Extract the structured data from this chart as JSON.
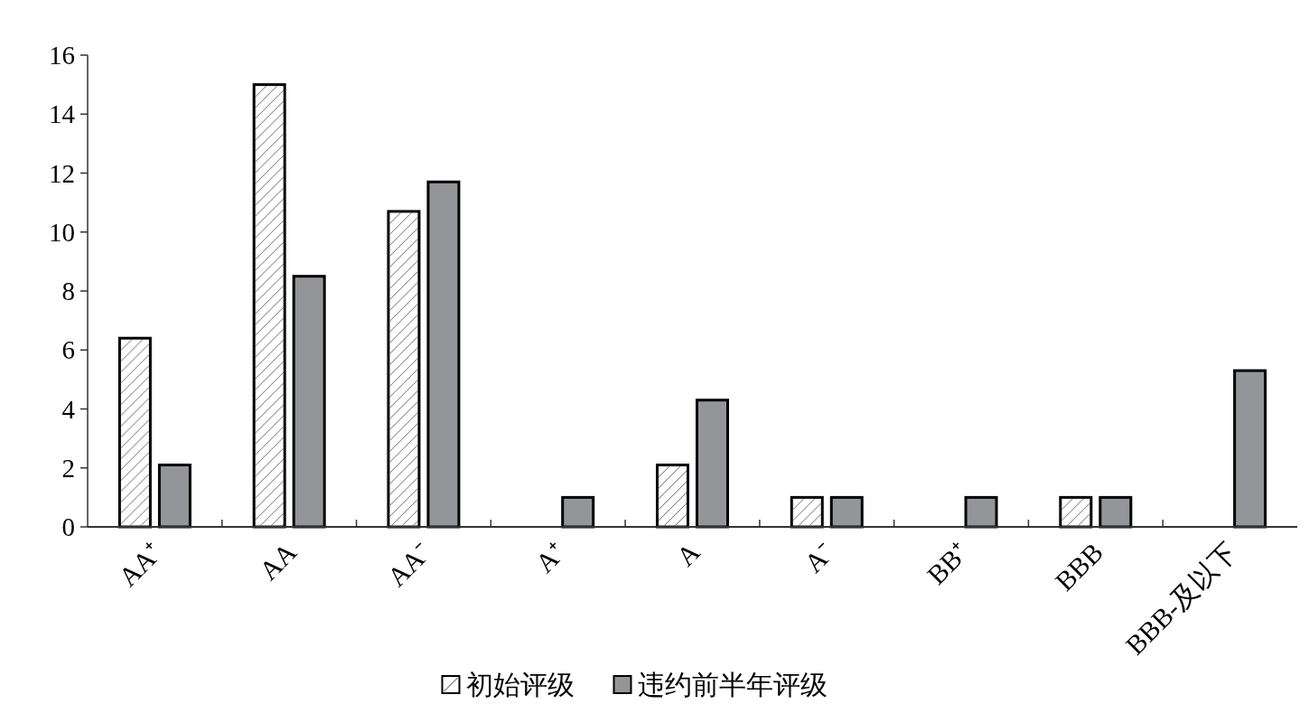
{
  "chart_data": {
    "type": "bar",
    "categories": [
      "AA⁺",
      "AA",
      "AA⁻",
      "A⁺",
      "A",
      "A⁻",
      "BB⁺",
      "BBB",
      "BBB-及以下"
    ],
    "series": [
      {
        "name": "初始评级",
        "color": "#ffffff",
        "values": [
          6.4,
          15,
          10.7,
          null,
          2.1,
          1,
          null,
          1,
          null
        ]
      },
      {
        "name": "违约前半年评级",
        "color": "#939598",
        "values": [
          2.1,
          8.5,
          11.7,
          1,
          4.3,
          1,
          1,
          1,
          5.3
        ]
      }
    ],
    "ylim": [
      0,
      16
    ],
    "yticks": [
      0,
      2,
      4,
      6,
      8,
      10,
      12,
      14,
      16
    ],
    "grid": false,
    "legend": "bottom"
  }
}
